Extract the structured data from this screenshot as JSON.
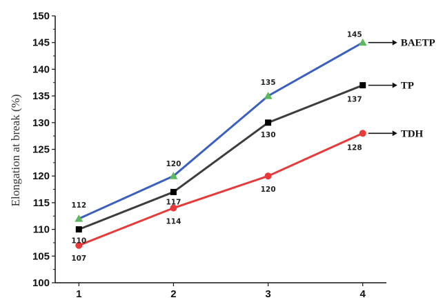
{
  "chart_data": {
    "type": "line",
    "title": "",
    "xlabel": "",
    "ylabel": "Elongation at break (%)",
    "x": [
      1,
      2,
      3,
      4
    ],
    "x_ticks": [
      "1",
      "2",
      "3",
      "4"
    ],
    "ylim": [
      100,
      150
    ],
    "y_ticks": [
      "100",
      "105",
      "110",
      "115",
      "120",
      "125",
      "130",
      "135",
      "140",
      "145",
      "150"
    ],
    "grid": false,
    "legend": "series names labeled at right end of lines with arrows",
    "series": [
      {
        "name": "BAETP",
        "values": [
          112,
          120,
          135,
          145
        ],
        "color": "#3a5fbf",
        "marker": "triangle",
        "marker_color": "#5cb85c"
      },
      {
        "name": "TP",
        "values": [
          110,
          117,
          130,
          137
        ],
        "color": "#3d3d3d",
        "marker": "square",
        "marker_color": "#000000"
      },
      {
        "name": "TDH",
        "values": [
          107,
          114,
          120,
          128
        ],
        "color": "#e83a3a",
        "marker": "circle",
        "marker_color": "#e83a3a"
      }
    ],
    "data_labels": [
      {
        "series": "BAETP",
        "labels": [
          "112",
          "120",
          "135",
          "145"
        ]
      },
      {
        "series": "TP",
        "labels": [
          "110",
          "117",
          "130",
          "137"
        ]
      },
      {
        "series": "TDH",
        "labels": [
          "107",
          "114",
          "120",
          "128"
        ]
      }
    ]
  }
}
